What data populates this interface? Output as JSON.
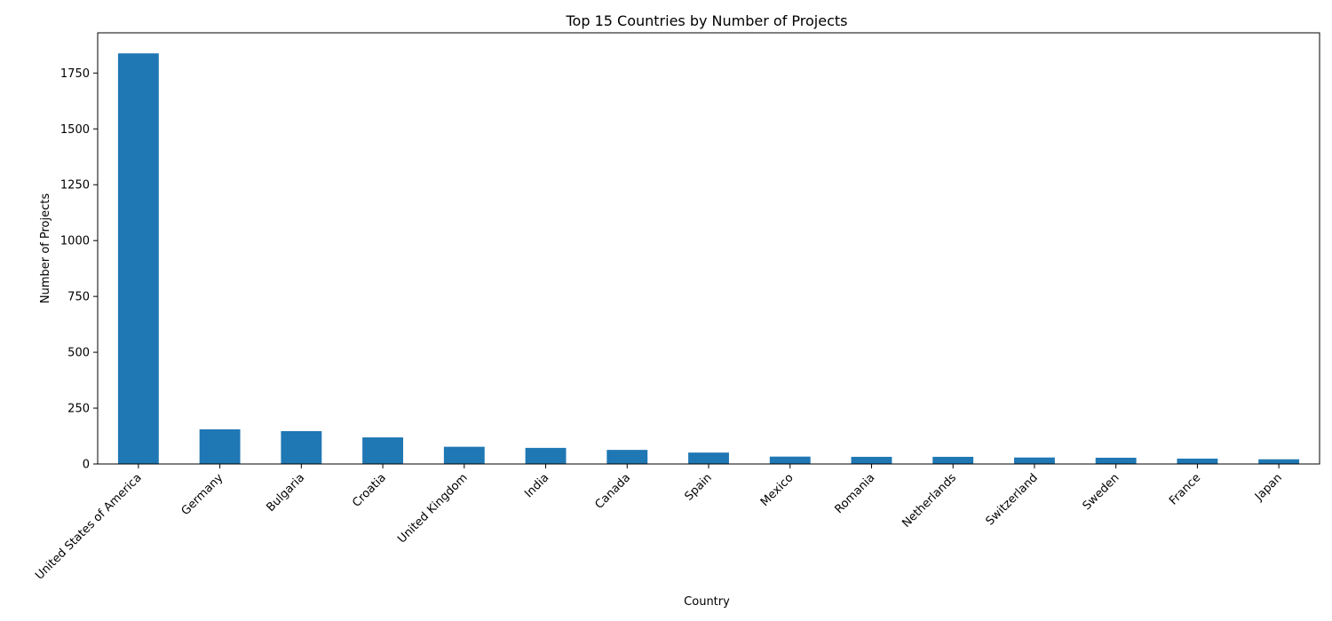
{
  "chart_data": {
    "type": "bar",
    "title": "Top 15 Countries by Number of Projects",
    "xlabel": "Country",
    "ylabel": "Number of Projects",
    "categories": [
      "United States of America",
      "Germany",
      "Bulgaria",
      "Croatia",
      "United Kingdom",
      "India",
      "Canada",
      "Spain",
      "Mexico",
      "Romania",
      "Netherlands",
      "Switzerland",
      "Sweden",
      "France",
      "Japan"
    ],
    "values": [
      1838,
      155,
      147,
      119,
      77,
      72,
      63,
      51,
      33,
      32,
      32,
      29,
      28,
      24,
      21
    ],
    "ylim": [
      0,
      1930
    ],
    "yticks": [
      0,
      250,
      500,
      750,
      1000,
      1250,
      1500,
      1750
    ],
    "bar_color": "#1f77b4",
    "grid": false,
    "legend": "none"
  }
}
